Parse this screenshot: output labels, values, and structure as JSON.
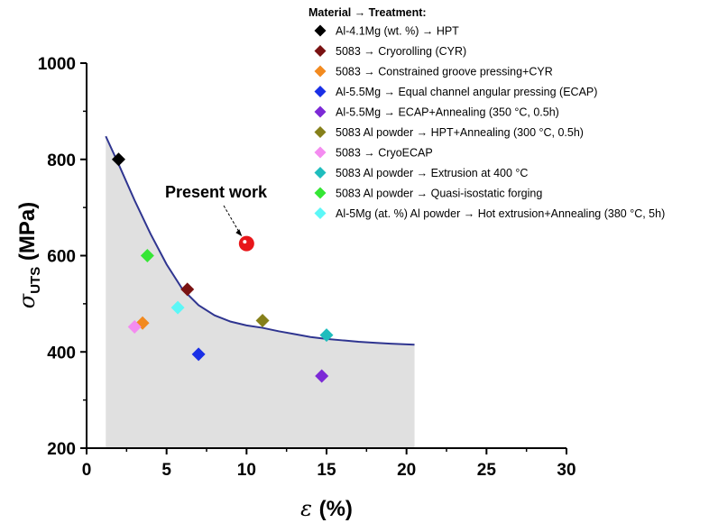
{
  "chart_data": {
    "type": "scatter",
    "title": "",
    "xlabel": "ε (%)",
    "ylabel": "σUTS (MPa)",
    "xlim": [
      0,
      30
    ],
    "ylim": [
      200,
      1000
    ],
    "xticks": [
      "0",
      "5",
      "10",
      "15",
      "20",
      "25",
      "30"
    ],
    "yticks": [
      "200",
      "400",
      "600",
      "800",
      "1000"
    ],
    "legend_title": "Material → Treatment:",
    "legend_position": "top-right",
    "series": [
      {
        "name": "Al-4.1Mg (wt. %) → HPT",
        "color": "#000000",
        "x": [
          2.0
        ],
        "y": [
          800
        ]
      },
      {
        "name": "5083 → Cryorolling (CYR)",
        "color": "#7a1212",
        "x": [
          6.3
        ],
        "y": [
          530
        ]
      },
      {
        "name": "5083 → Constrained groove pressing+CYR",
        "color": "#f28a1f",
        "x": [
          3.5
        ],
        "y": [
          460
        ]
      },
      {
        "name": "Al-5.5Mg → Equal channel angular pressing (ECAP)",
        "color": "#1a2fe6",
        "x": [
          7.0
        ],
        "y": [
          395
        ]
      },
      {
        "name": "Al-5.5Mg → ECAP+Annealing (350 °C, 0.5h)",
        "color": "#7c2ad6",
        "x": [
          14.7
        ],
        "y": [
          350
        ]
      },
      {
        "name": "5083 Al powder → HPT+Annealing (300 °C, 0.5h)",
        "color": "#86801a",
        "x": [
          11.0
        ],
        "y": [
          465
        ]
      },
      {
        "name": "5083 → CryoECAP",
        "color": "#f48cf0",
        "x": [
          3.0
        ],
        "y": [
          452
        ]
      },
      {
        "name": "5083 Al powder → Extrusion at 400 °C",
        "color": "#1fbdbd",
        "x": [
          15.0
        ],
        "y": [
          435
        ]
      },
      {
        "name": "5083 Al powder → Quasi-isostatic forging",
        "color": "#35e635",
        "x": [
          3.8
        ],
        "y": [
          600
        ]
      },
      {
        "name": "Al-5Mg (at. %) Al powder → Hot extrusion+Annealing (380 °C, 5h)",
        "color": "#5cf7f7",
        "x": [
          5.7
        ],
        "y": [
          492
        ]
      }
    ],
    "present_work": {
      "label": "Present work",
      "x": 10.0,
      "y": 625,
      "color": "#e8161a"
    },
    "trend_curve": {
      "color": "#2f3590",
      "shaded_fill": "#e0e0e0",
      "x": [
        1.2,
        2,
        3,
        4,
        5,
        6,
        7,
        8,
        9,
        10,
        11,
        12,
        13,
        14,
        15,
        16,
        17,
        18,
        19,
        20.5
      ],
      "y": [
        848,
        790,
        715,
        645,
        582,
        530,
        497,
        476,
        463,
        455,
        450,
        443,
        437,
        431,
        427,
        424,
        421,
        419,
        417,
        415
      ]
    }
  }
}
